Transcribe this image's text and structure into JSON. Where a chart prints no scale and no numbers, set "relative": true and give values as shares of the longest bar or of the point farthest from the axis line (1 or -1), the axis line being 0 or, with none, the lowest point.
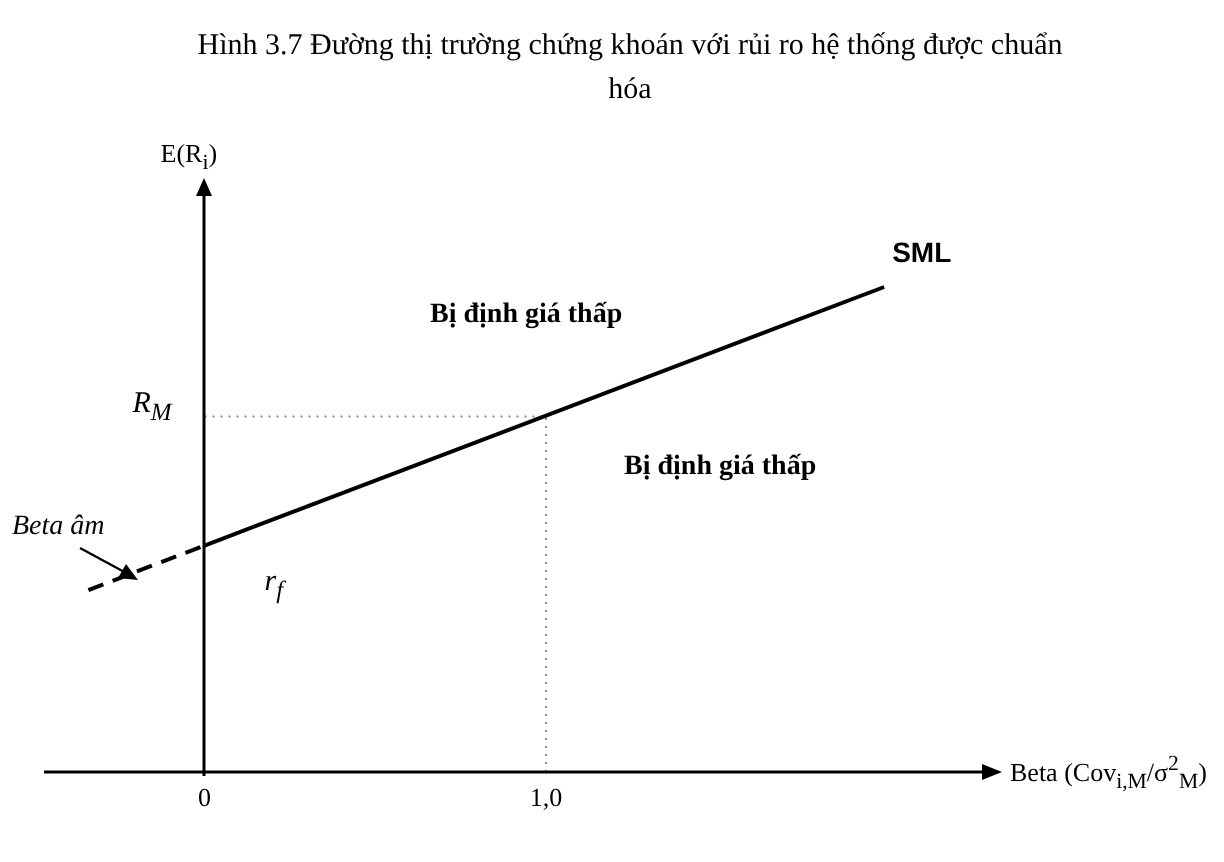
{
  "chart_data": {
    "type": "line",
    "title": "Hình 3.7 Đường thị trường chứng khoán với rủi ro hệ thống được chuẩn hóa",
    "xlabel": "Beta (Cov$_{i,M}$/σ$^{2}$$_{M}$)",
    "ylabel": "E(R$_{i}$)",
    "relative": true,
    "xlim": [
      -0.47,
      2.3
    ],
    "xticks": [
      0,
      {
        "value": 1,
        "label": "1,0"
      }
    ],
    "marker": "none",
    "series": [
      {
        "color": "#000000",
        "x": [
          -0.34,
          0
        ],
        "values": [
          0.375,
          0.467
        ],
        "line_style": "dashed"
      },
      {
        "name": "SML",
        "color": "#000000",
        "x": [
          0,
          1.99
        ],
        "values": [
          0.467,
          1
        ],
        "line_style": "solid"
      }
    ],
    "ref_lines": [
      {
        "axis": "y",
        "value": 0.733,
        "label": "R$_{M}$",
        "line_style": "dotted",
        "color": "#888888"
      },
      {
        "axis": "x",
        "value": 1,
        "line_style": "dotted",
        "color": "#888888"
      }
    ],
    "annotations": [
      "Bị định giá thấp",
      "Bị định giá thấp",
      {
        "text": "r$_{f}$",
        "x": 0,
        "y": 0.467
      },
      "Beta âm"
    ]
  }
}
